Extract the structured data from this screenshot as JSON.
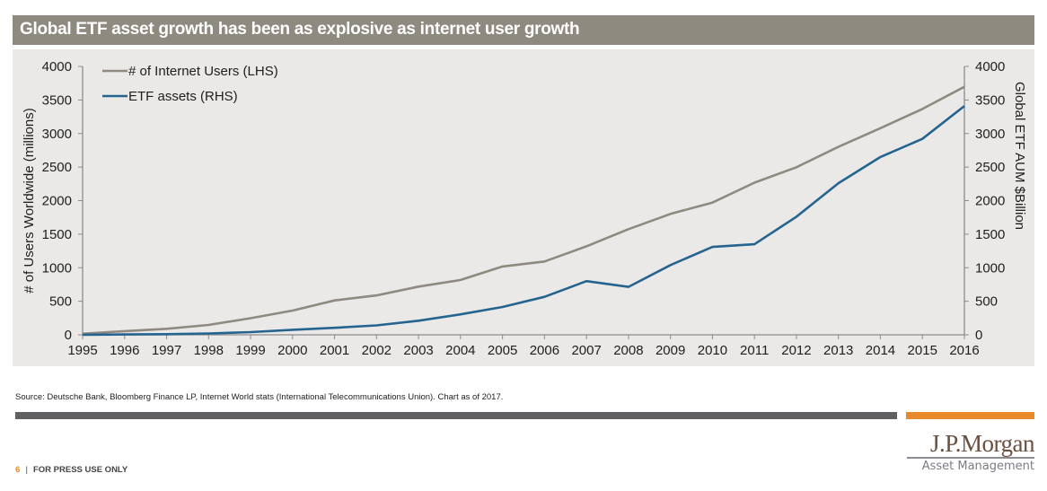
{
  "header": {
    "title": "Global ETF asset growth has been as explosive as internet user growth"
  },
  "chart_data": {
    "type": "line",
    "title": "Global ETF asset growth has been as explosive as internet user growth",
    "x": [
      1995,
      1996,
      1997,
      1998,
      1999,
      2000,
      2001,
      2002,
      2003,
      2004,
      2005,
      2006,
      2007,
      2008,
      2009,
      2010,
      2011,
      2012,
      2013,
      2014,
      2015,
      2016
    ],
    "x_tick_labels": [
      "1995",
      "1996",
      "1997",
      "1998",
      "1999",
      "2000",
      "2001",
      "2002",
      "2003",
      "2004",
      "2005",
      "2006",
      "2007",
      "2008",
      "2009",
      "2010",
      "2011",
      "2012",
      "2013",
      "2014",
      "2015",
      "2016"
    ],
    "ylabel_left": "# of Users Worldwide (millions)",
    "ylabel_right": "Global ETF AUM $Billion",
    "ylim_left": [
      0,
      4000
    ],
    "ylim_right": [
      0,
      4000
    ],
    "y_ticks_left": [
      "0",
      "500",
      "1000",
      "1500",
      "2000",
      "2500",
      "3000",
      "3500",
      "4000"
    ],
    "y_ticks_right": [
      "0",
      "500",
      "1000",
      "1500",
      "2000",
      "2500",
      "3000",
      "3500",
      "4000"
    ],
    "y_tick_values": [
      0,
      500,
      1000,
      1500,
      2000,
      2500,
      3000,
      3500,
      4000
    ],
    "grid": false,
    "legend_position": "top-left",
    "series": [
      {
        "name": "# of Internet Users (LHS)",
        "axis": "left",
        "color": "#8f8a80",
        "values": [
          16,
          55,
          90,
          147,
          248,
          361,
          513,
          587,
          719,
          817,
          1018,
          1093,
          1319,
          1574,
          1802,
          1971,
          2267,
          2497,
          2802,
          3079,
          3366,
          3696
        ]
      },
      {
        "name": "ETF assets (RHS)",
        "axis": "right",
        "color": "#24648f",
        "values": [
          2,
          6,
          10,
          20,
          40,
          75,
          105,
          140,
          210,
          305,
          415,
          566,
          800,
          715,
          1040,
          1310,
          1350,
          1760,
          2260,
          2650,
          2920,
          3410
        ]
      }
    ]
  },
  "footer": {
    "source": "Source: Deutsche Bank, Bloomberg Finance LP, Internet World stats (International  Telecommunications  Union). Chart as of 2017.",
    "page_number": "6",
    "separator": "|",
    "press_label": "FOR PRESS USE ONLY",
    "logo_main": "J.P.Morgan",
    "logo_sub": "Asset Management",
    "accent_color": "#e88a2b"
  }
}
